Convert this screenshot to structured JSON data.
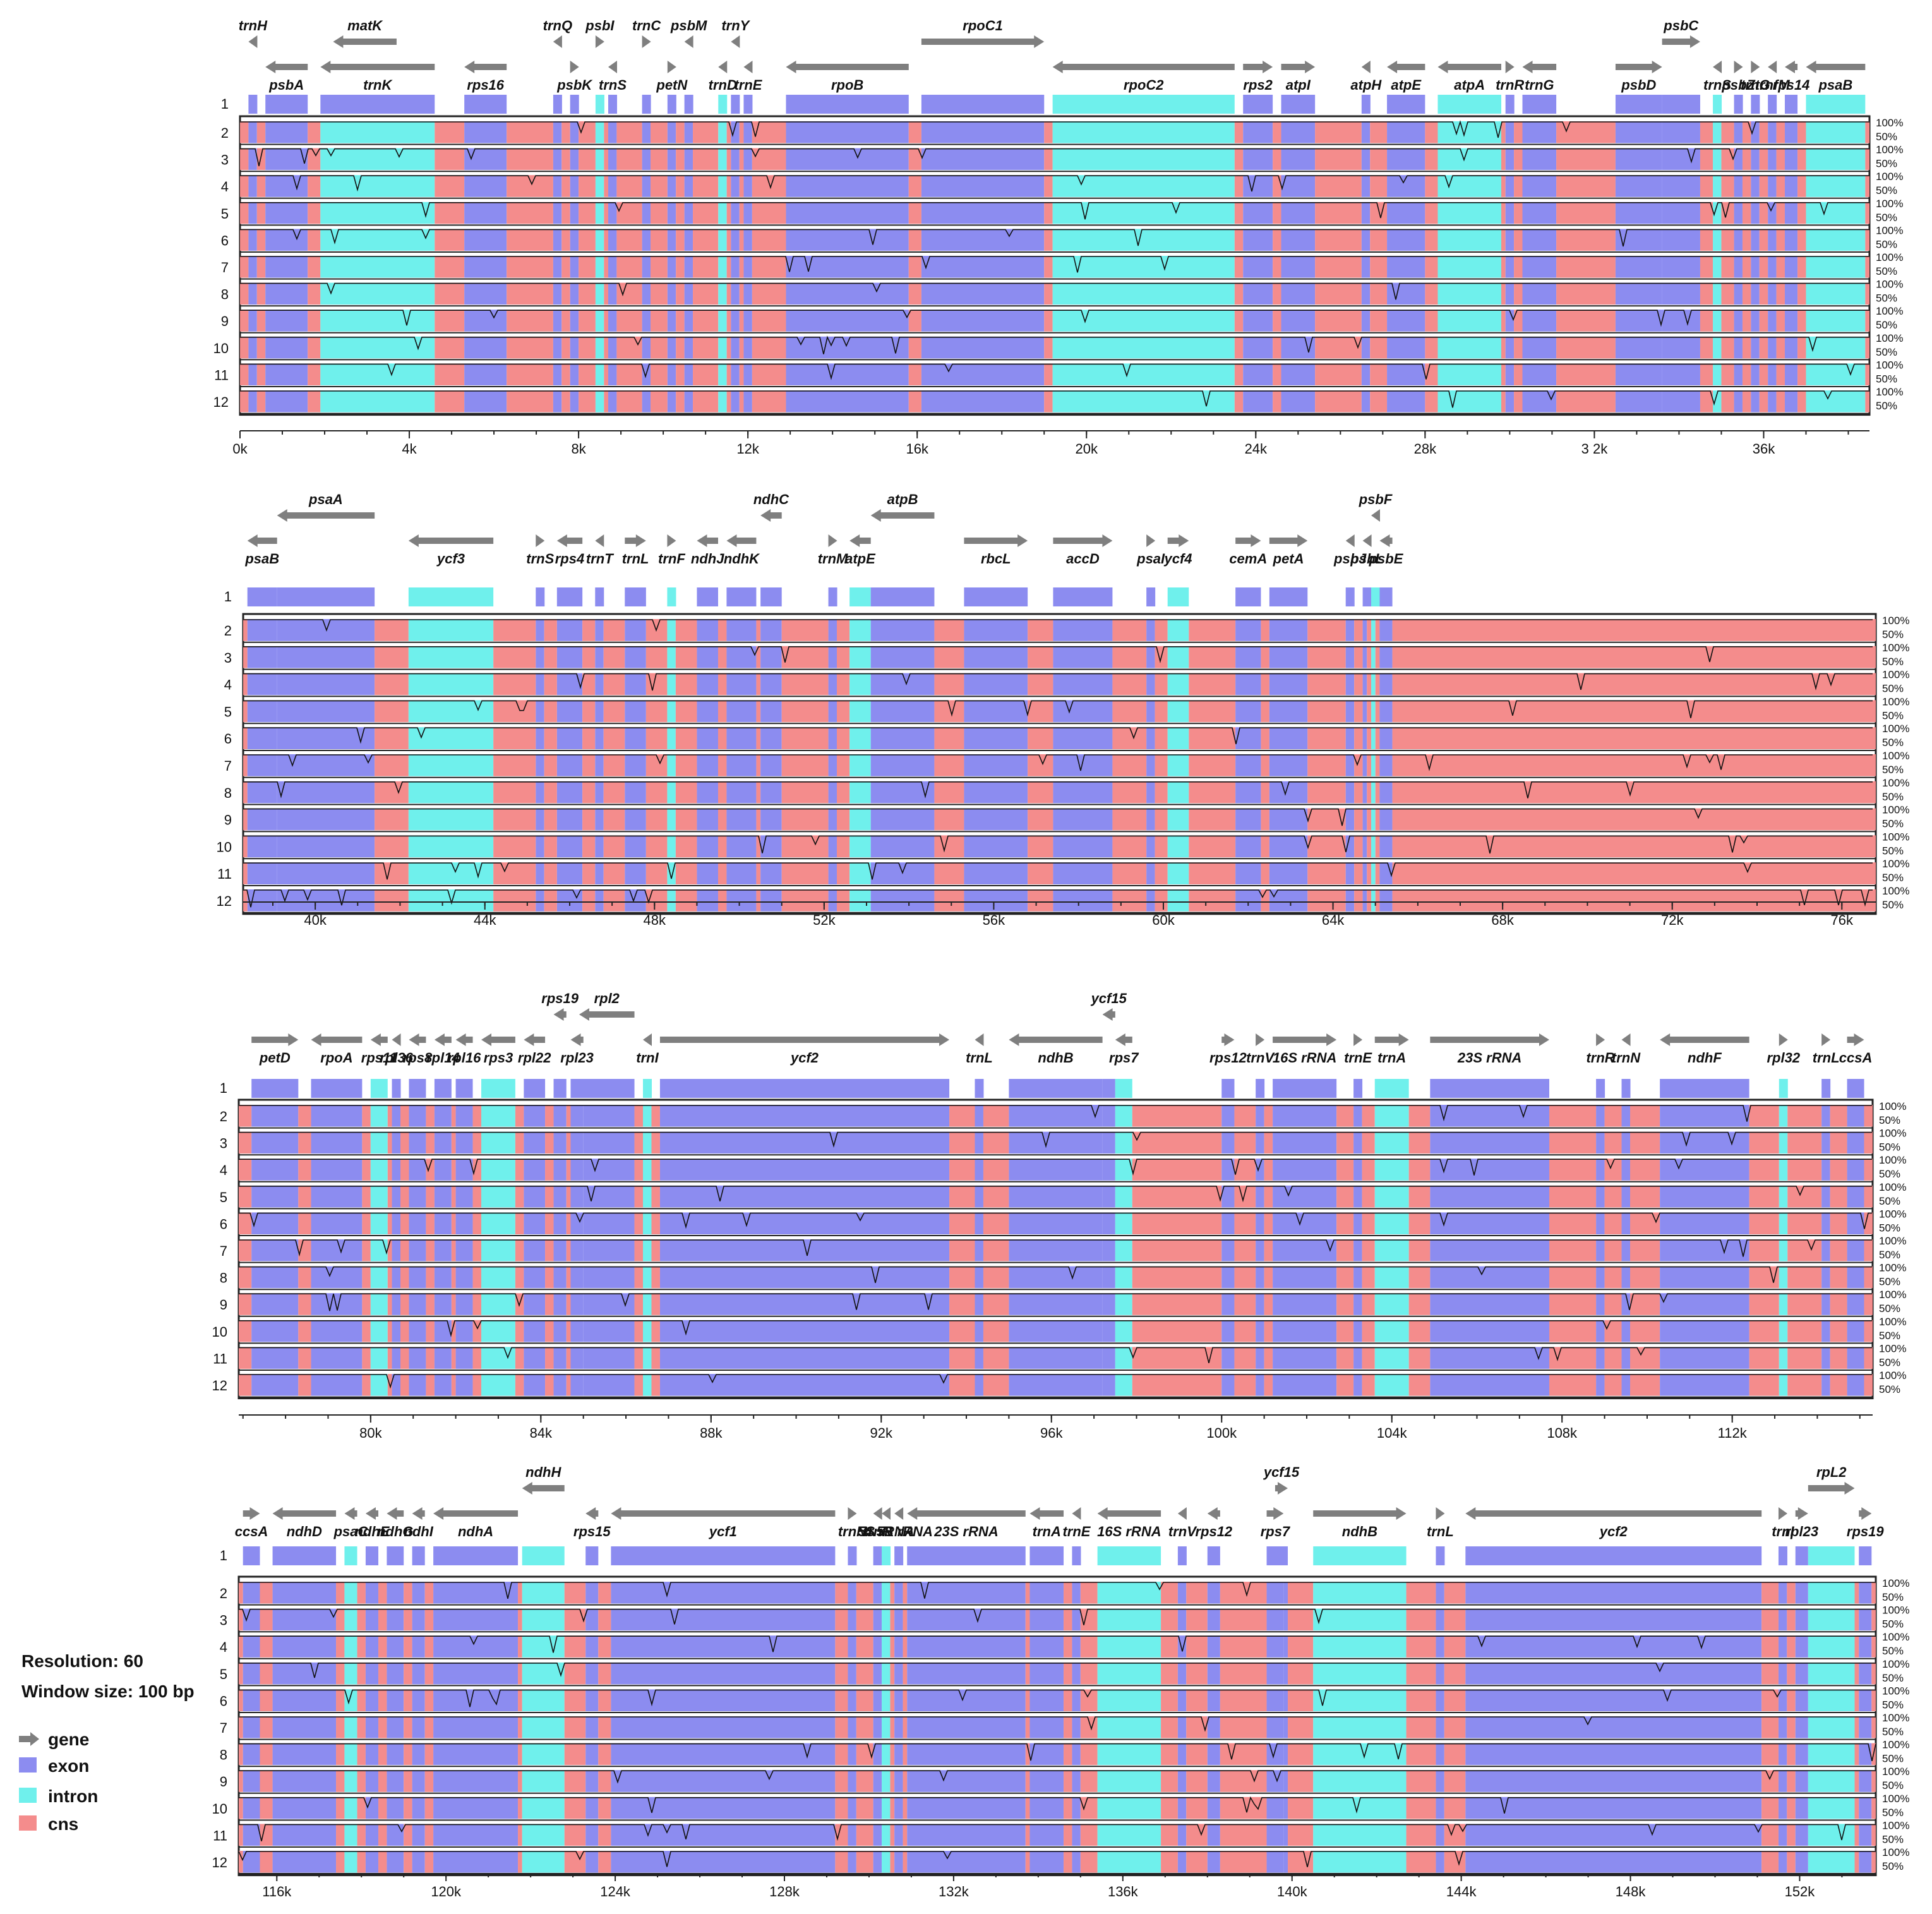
{
  "legend": {
    "resolution": "Resolution: 60",
    "window": "Window size: 100 bp",
    "items": [
      {
        "label": "gene",
        "color": "#7f7f7f"
      },
      {
        "label": "exon",
        "color": "#8c8cf0"
      },
      {
        "label": "intron",
        "color": "#6ff0ec"
      },
      {
        "label": "cns",
        "color": "#f48c8c"
      }
    ]
  },
  "colors": {
    "exon": "#8c8cf0",
    "intron": "#6ff0ec",
    "cns": "#f48c8c",
    "gene": "#7f7f7f",
    "orange": "#f08c28"
  },
  "chart_data": [
    {
      "type": "area",
      "title": "",
      "xlim": [
        0,
        38500
      ],
      "ylim": [
        50,
        100
      ],
      "right_tick_labels": [
        "100%",
        "50%"
      ],
      "row_labels": [
        "1",
        "2",
        "3",
        "4",
        "5",
        "6",
        "7",
        "8",
        "9",
        "10",
        "11",
        "12"
      ],
      "x_ticks": [
        "0k",
        "4k",
        "8k",
        "12k",
        "16k",
        "20k",
        "24k",
        "28k",
        "3 2k",
        "36k"
      ],
      "x_tick_values": [
        0,
        4000,
        8000,
        12000,
        16000,
        20000,
        24000,
        28000,
        32000,
        36000
      ],
      "genes": [
        {
          "name": "trnH",
          "start": 200,
          "end": 400,
          "lane": 0,
          "dir": "-"
        },
        {
          "name": "psbA",
          "start": 600,
          "end": 1600,
          "lane": 1,
          "dir": "-"
        },
        {
          "name": "matK",
          "start": 2200,
          "end": 3700,
          "lane": 0,
          "dir": "-"
        },
        {
          "name": "trnK",
          "start": 1900,
          "end": 4600,
          "lane": 1,
          "dir": "-"
        },
        {
          "name": "rps16",
          "start": 5300,
          "end": 6300,
          "lane": 1,
          "dir": "-"
        },
        {
          "name": "trnQ",
          "start": 7400,
          "end": 7600,
          "lane": 0,
          "dir": "-"
        },
        {
          "name": "psbK",
          "start": 7800,
          "end": 8000,
          "lane": 1,
          "dir": "+"
        },
        {
          "name": "psbI",
          "start": 8400,
          "end": 8600,
          "lane": 0,
          "dir": "+"
        },
        {
          "name": "trnS",
          "start": 8700,
          "end": 8900,
          "lane": 1,
          "dir": "-"
        },
        {
          "name": "trnC",
          "start": 9500,
          "end": 9700,
          "lane": 0,
          "dir": "+"
        },
        {
          "name": "petN",
          "start": 10100,
          "end": 10300,
          "lane": 1,
          "dir": "+"
        },
        {
          "name": "psbM",
          "start": 10500,
          "end": 10700,
          "lane": 0,
          "dir": "-"
        },
        {
          "name": "trnD",
          "start": 11300,
          "end": 11500,
          "lane": 1,
          "dir": "-"
        },
        {
          "name": "trnY",
          "start": 11600,
          "end": 11800,
          "lane": 0,
          "dir": "-"
        },
        {
          "name": "trnE",
          "start": 11900,
          "end": 12100,
          "lane": 1,
          "dir": "-"
        },
        {
          "name": "rpoB",
          "start": 12900,
          "end": 15800,
          "lane": 1,
          "dir": "-"
        },
        {
          "name": "rpoC1",
          "start": 16100,
          "end": 19000,
          "lane": 0,
          "dir": "+"
        },
        {
          "name": "rpoC2",
          "start": 19200,
          "end": 23500,
          "lane": 1,
          "dir": "-"
        },
        {
          "name": "rps2",
          "start": 23700,
          "end": 24400,
          "lane": 1,
          "dir": "+"
        },
        {
          "name": "atpI",
          "start": 24600,
          "end": 25400,
          "lane": 1,
          "dir": "+"
        },
        {
          "name": "atpH",
          "start": 26500,
          "end": 26700,
          "lane": 1,
          "dir": "-"
        },
        {
          "name": "atpE",
          "start": 27100,
          "end": 28000,
          "lane": 1,
          "dir": "-"
        },
        {
          "name": "atpA",
          "start": 28300,
          "end": 29800,
          "lane": 1,
          "dir": "-"
        },
        {
          "name": "trnR",
          "start": 29900,
          "end": 30100,
          "lane": 1,
          "dir": "+"
        },
        {
          "name": "trnG",
          "start": 30300,
          "end": 31100,
          "lane": 1,
          "dir": "-"
        },
        {
          "name": "psbD",
          "start": 32500,
          "end": 33600,
          "lane": 1,
          "dir": "+"
        },
        {
          "name": "psbC",
          "start": 33600,
          "end": 34500,
          "lane": 0,
          "dir": "+"
        },
        {
          "name": "trnS",
          "start": 34800,
          "end": 35000,
          "lane": 1,
          "dir": "-"
        },
        {
          "name": "psbZ",
          "start": 35300,
          "end": 35500,
          "lane": 1,
          "dir": "+"
        },
        {
          "name": "trnG",
          "start": 35700,
          "end": 35900,
          "lane": 1,
          "dir": "+"
        },
        {
          "name": "trnfM",
          "start": 36100,
          "end": 36300,
          "lane": 1,
          "dir": "-"
        },
        {
          "name": "rps14",
          "start": 36500,
          "end": 36800,
          "lane": 1,
          "dir": "-"
        },
        {
          "name": "psaB",
          "start": 37000,
          "end": 38400,
          "lane": 1,
          "dir": "-"
        }
      ]
    },
    {
      "type": "area",
      "xlim": [
        38300,
        76800
      ],
      "ylim": [
        50,
        100
      ],
      "right_tick_labels": [
        "100%",
        "50%"
      ],
      "row_labels": [
        "1",
        "2",
        "3",
        "4",
        "5",
        "6",
        "7",
        "8",
        "9",
        "10",
        "11",
        "12"
      ],
      "x_ticks": [
        "40k",
        "44k",
        "48k",
        "52k",
        "56k",
        "60k",
        "64k",
        "68k",
        "72k",
        "76k"
      ],
      "x_tick_values": [
        40000,
        44000,
        48000,
        52000,
        56000,
        60000,
        64000,
        68000,
        72000,
        76000
      ],
      "genes": [
        {
          "name": "psaB",
          "start": 38400,
          "end": 39100,
          "lane": 1,
          "dir": "-"
        },
        {
          "name": "psaA",
          "start": 39100,
          "end": 41400,
          "lane": 0,
          "dir": "-"
        },
        {
          "name": "ycf3",
          "start": 42200,
          "end": 44200,
          "lane": 1,
          "dir": "-"
        },
        {
          "name": "trnS",
          "start": 45200,
          "end": 45400,
          "lane": 1,
          "dir": "+"
        },
        {
          "name": "rps4",
          "start": 45700,
          "end": 46300,
          "lane": 1,
          "dir": "-"
        },
        {
          "name": "trnT",
          "start": 46600,
          "end": 46800,
          "lane": 1,
          "dir": "-"
        },
        {
          "name": "trnL",
          "start": 47300,
          "end": 47800,
          "lane": 1,
          "dir": "+"
        },
        {
          "name": "trnF",
          "start": 48300,
          "end": 48500,
          "lane": 1,
          "dir": "+"
        },
        {
          "name": "ndhJ",
          "start": 49000,
          "end": 49500,
          "lane": 1,
          "dir": "-"
        },
        {
          "name": "ndhK",
          "start": 49700,
          "end": 50400,
          "lane": 1,
          "dir": "-"
        },
        {
          "name": "ndhC",
          "start": 50500,
          "end": 51000,
          "lane": 0,
          "dir": "-"
        },
        {
          "name": "trnM",
          "start": 52100,
          "end": 52300,
          "lane": 1,
          "dir": "+"
        },
        {
          "name": "atpE",
          "start": 52600,
          "end": 53100,
          "lane": 1,
          "dir": "-"
        },
        {
          "name": "atpB",
          "start": 53100,
          "end": 54600,
          "lane": 0,
          "dir": "-"
        },
        {
          "name": "rbcL",
          "start": 55300,
          "end": 56800,
          "lane": 1,
          "dir": "+"
        },
        {
          "name": "accD",
          "start": 57400,
          "end": 58800,
          "lane": 1,
          "dir": "+"
        },
        {
          "name": "psaI",
          "start": 59600,
          "end": 59800,
          "lane": 1,
          "dir": "+"
        },
        {
          "name": "ycf4",
          "start": 60100,
          "end": 60600,
          "lane": 1,
          "dir": "+"
        },
        {
          "name": "cemA",
          "start": 61700,
          "end": 62300,
          "lane": 1,
          "dir": "+"
        },
        {
          "name": "petA",
          "start": 62500,
          "end": 63400,
          "lane": 1,
          "dir": "+"
        },
        {
          "name": "psbJ",
          "start": 64300,
          "end": 64500,
          "lane": 1,
          "dir": "-"
        },
        {
          "name": "psbL",
          "start": 64700,
          "end": 64800,
          "lane": 1,
          "dir": "-"
        },
        {
          "name": "psbF",
          "start": 64900,
          "end": 65000,
          "lane": 0,
          "dir": "-"
        },
        {
          "name": "psbE",
          "start": 65100,
          "end": 65400,
          "lane": 1,
          "dir": "-"
        }
      ]
    },
    {
      "type": "area",
      "xlim": [
        76900,
        115300
      ],
      "ylim": [
        50,
        100
      ],
      "right_tick_labels": [
        "100%",
        "50%"
      ],
      "row_labels": [
        "1",
        "2",
        "3",
        "4",
        "5",
        "6",
        "7",
        "8",
        "9",
        "10",
        "11",
        "12"
      ],
      "x_ticks": [
        "80k",
        "84k",
        "88k",
        "92k",
        "96k",
        "100k",
        "104k",
        "108k",
        "112k"
      ],
      "x_tick_values": [
        80000,
        84000,
        88000,
        92000,
        96000,
        100000,
        104000,
        108000,
        112000
      ],
      "genes": [
        {
          "name": "petD",
          "start": 77200,
          "end": 78300,
          "lane": 1,
          "dir": "+"
        },
        {
          "name": "rpoA",
          "start": 78600,
          "end": 79800,
          "lane": 1,
          "dir": "-"
        },
        {
          "name": "rps11",
          "start": 80000,
          "end": 80400,
          "lane": 1,
          "dir": "-"
        },
        {
          "name": "rpl36",
          "start": 80500,
          "end": 80700,
          "lane": 1,
          "dir": "-"
        },
        {
          "name": "rps8",
          "start": 80900,
          "end": 81300,
          "lane": 1,
          "dir": "-"
        },
        {
          "name": "rpl14",
          "start": 81500,
          "end": 81900,
          "lane": 1,
          "dir": "-"
        },
        {
          "name": "rpl16",
          "start": 82000,
          "end": 82400,
          "lane": 1,
          "dir": "-"
        },
        {
          "name": "rps3",
          "start": 82600,
          "end": 83400,
          "lane": 1,
          "dir": "-"
        },
        {
          "name": "rpl22",
          "start": 83600,
          "end": 84100,
          "lane": 1,
          "dir": "-"
        },
        {
          "name": "rps19",
          "start": 84300,
          "end": 84600,
          "lane": 0,
          "dir": "-"
        },
        {
          "name": "rpl2",
          "start": 84900,
          "end": 86200,
          "lane": 0,
          "dir": "-"
        },
        {
          "name": "rpl23",
          "start": 84700,
          "end": 85000,
          "lane": 1,
          "dir": "-"
        },
        {
          "name": "trnI",
          "start": 86400,
          "end": 86600,
          "lane": 1,
          "dir": "-"
        },
        {
          "name": "ycf2",
          "start": 86800,
          "end": 93600,
          "lane": 1,
          "dir": "+"
        },
        {
          "name": "trnL",
          "start": 94200,
          "end": 94400,
          "lane": 1,
          "dir": "-"
        },
        {
          "name": "ndhB",
          "start": 95000,
          "end": 97200,
          "lane": 1,
          "dir": "-"
        },
        {
          "name": "ycf15",
          "start": 97200,
          "end": 97500,
          "lane": 0,
          "dir": "-"
        },
        {
          "name": "rps7",
          "start": 97500,
          "end": 97900,
          "lane": 1,
          "dir": "-"
        },
        {
          "name": "rps12",
          "start": 100000,
          "end": 100300,
          "lane": 1,
          "dir": "+"
        },
        {
          "name": "trnV",
          "start": 100800,
          "end": 101000,
          "lane": 1,
          "dir": "+"
        },
        {
          "name": "16S rRNA",
          "start": 101200,
          "end": 102700,
          "lane": 1,
          "dir": "+"
        },
        {
          "name": "trnE",
          "start": 103100,
          "end": 103300,
          "lane": 1,
          "dir": "+"
        },
        {
          "name": "trnA",
          "start": 103600,
          "end": 104400,
          "lane": 1,
          "dir": "+"
        },
        {
          "name": "23S rRNA",
          "start": 104900,
          "end": 107700,
          "lane": 1,
          "dir": "+"
        },
        {
          "name": "trnR",
          "start": 108800,
          "end": 109000,
          "lane": 1,
          "dir": "+"
        },
        {
          "name": "trnN",
          "start": 109400,
          "end": 109600,
          "lane": 1,
          "dir": "-"
        },
        {
          "name": "ndhF",
          "start": 110300,
          "end": 112400,
          "lane": 1,
          "dir": "-"
        },
        {
          "name": "rpl32",
          "start": 113100,
          "end": 113300,
          "lane": 1,
          "dir": "+"
        },
        {
          "name": "trnL",
          "start": 114100,
          "end": 114300,
          "lane": 1,
          "dir": "+"
        },
        {
          "name": "ccsA",
          "start": 114700,
          "end": 115100,
          "lane": 1,
          "dir": "+"
        }
      ]
    },
    {
      "type": "area",
      "xlim": [
        115100,
        153800
      ],
      "ylim": [
        50,
        100
      ],
      "right_tick_labels": [
        "100%",
        "50%"
      ],
      "row_labels": [
        "1",
        "2",
        "3",
        "4",
        "5",
        "6",
        "7",
        "8",
        "9",
        "10",
        "11",
        "12"
      ],
      "x_ticks": [
        "116k",
        "120k",
        "124k",
        "128k",
        "132k",
        "136k",
        "140k",
        "144k",
        "148k",
        "152k"
      ],
      "x_tick_values": [
        116000,
        120000,
        124000,
        128000,
        132000,
        136000,
        140000,
        144000,
        148000,
        152000
      ],
      "genes": [
        {
          "name": "ccsA",
          "start": 115200,
          "end": 115600,
          "lane": 1,
          "dir": "+"
        },
        {
          "name": "ndhD",
          "start": 115900,
          "end": 117400,
          "lane": 1,
          "dir": "-"
        },
        {
          "name": "psaC",
          "start": 117600,
          "end": 117900,
          "lane": 1,
          "dir": "-"
        },
        {
          "name": "ndhE",
          "start": 118100,
          "end": 118400,
          "lane": 1,
          "dir": "-"
        },
        {
          "name": "ndhG",
          "start": 118600,
          "end": 119000,
          "lane": 1,
          "dir": "-"
        },
        {
          "name": "ndhI",
          "start": 119200,
          "end": 119500,
          "lane": 1,
          "dir": "-"
        },
        {
          "name": "ndhA",
          "start": 119700,
          "end": 121700,
          "lane": 1,
          "dir": "-"
        },
        {
          "name": "ndhH",
          "start": 121800,
          "end": 122800,
          "lane": 0,
          "dir": "-"
        },
        {
          "name": "rps15",
          "start": 123300,
          "end": 123600,
          "lane": 1,
          "dir": "-"
        },
        {
          "name": "ycf1",
          "start": 123900,
          "end": 129200,
          "lane": 1,
          "dir": "-"
        },
        {
          "name": "trnN",
          "start": 129500,
          "end": 129700,
          "lane": 1,
          "dir": "+"
        },
        {
          "name": "trnR",
          "start": 130100,
          "end": 130300,
          "lane": 1,
          "dir": "-"
        },
        {
          "name": "5S rRNA",
          "start": 130300,
          "end": 130500,
          "lane": 1,
          "dir": "-"
        },
        {
          "name": "4.5S rRNA",
          "start": 130600,
          "end": 130800,
          "lane": 1,
          "dir": "-"
        },
        {
          "name": "23S rRNA",
          "start": 130900,
          "end": 133700,
          "lane": 1,
          "dir": "-"
        },
        {
          "name": "trnA",
          "start": 133800,
          "end": 134600,
          "lane": 1,
          "dir": "-"
        },
        {
          "name": "trnE",
          "start": 134800,
          "end": 135000,
          "lane": 1,
          "dir": "-"
        },
        {
          "name": "16S rRNA",
          "start": 135400,
          "end": 136900,
          "lane": 1,
          "dir": "-"
        },
        {
          "name": "trnV",
          "start": 137300,
          "end": 137500,
          "lane": 1,
          "dir": "-"
        },
        {
          "name": "rps12",
          "start": 138000,
          "end": 138300,
          "lane": 1,
          "dir": "-"
        },
        {
          "name": "rps7",
          "start": 139400,
          "end": 139800,
          "lane": 1,
          "dir": "+"
        },
        {
          "name": "ycf15",
          "start": 139600,
          "end": 139900,
          "lane": 0,
          "dir": "+"
        },
        {
          "name": "ndhB",
          "start": 140500,
          "end": 142700,
          "lane": 1,
          "dir": "+"
        },
        {
          "name": "trnL",
          "start": 143400,
          "end": 143600,
          "lane": 1,
          "dir": "+"
        },
        {
          "name": "ycf2",
          "start": 144100,
          "end": 151100,
          "lane": 1,
          "dir": "-"
        },
        {
          "name": "trnI",
          "start": 151500,
          "end": 151700,
          "lane": 1,
          "dir": "+"
        },
        {
          "name": "rpl23",
          "start": 151900,
          "end": 152200,
          "lane": 1,
          "dir": "+"
        },
        {
          "name": "rpL2",
          "start": 152200,
          "end": 153300,
          "lane": 0,
          "dir": "+"
        },
        {
          "name": "rps19",
          "start": 153400,
          "end": 153700,
          "lane": 1,
          "dir": "+"
        }
      ]
    }
  ]
}
